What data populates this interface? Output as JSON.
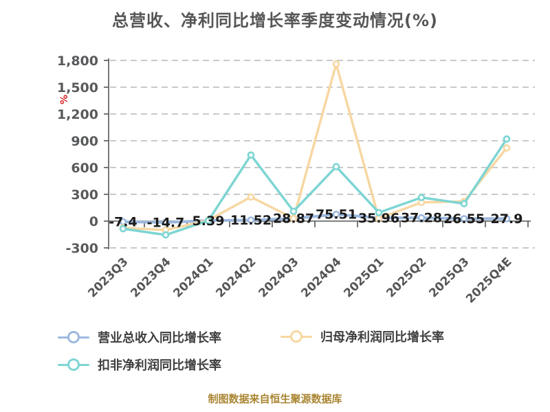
{
  "title": "总营收、净利同比增长率季度变动情况(%)",
  "y_axis": {
    "unit_label": "%",
    "unit_label_color": "#dd2222",
    "tick_labels": [
      "1,800",
      "1,500",
      "1,200",
      "900",
      "600",
      "300",
      "0",
      "-300"
    ],
    "tick_values": [
      1800,
      1500,
      1200,
      900,
      600,
      300,
      0,
      -300
    ]
  },
  "chart_data": {
    "type": "line",
    "title": "总营收、净利同比增长率季度变动情况(%)",
    "categories": [
      "2023Q3",
      "2023Q4",
      "2024Q1",
      "2024Q2",
      "2024Q3",
      "2024Q4",
      "2025Q1",
      "2025Q2",
      "2025Q3",
      "2025Q4E"
    ],
    "series": [
      {
        "name": "营业总收入同比增长率",
        "color": "#9cb8de",
        "values": [
          -7.4,
          -14.7,
          5.39,
          11.52,
          28.87,
          75.51,
          35.96,
          37.28,
          26.55,
          27.9
        ],
        "point_labels": [
          "-7.4",
          "-14.7",
          "5.39",
          "11.52",
          "28.87",
          "75.51",
          "35.96",
          "37.28",
          "26.55",
          "27.9"
        ]
      },
      {
        "name": "归母净利润同比增长率",
        "color": "#f7d7a2",
        "values": [
          -75,
          -100,
          10,
          270,
          30,
          1760,
          30,
          210,
          220,
          820
        ],
        "point_labels": []
      },
      {
        "name": "扣非净利润同比增长率",
        "color": "#7dd5d3",
        "values": [
          -85,
          -155,
          5,
          740,
          110,
          610,
          95,
          265,
          195,
          920
        ],
        "point_labels": []
      }
    ],
    "ylim": [
      -300,
      1800
    ],
    "xlabel": "",
    "ylabel": "%",
    "grid": "horizontal dashed",
    "legend_position": "bottom"
  },
  "legend": {
    "items": [
      {
        "label": "营业总收入同比增长率",
        "color": "#9cb8de"
      },
      {
        "label": "归母净利润同比增长率",
        "color": "#f7d7a2"
      },
      {
        "label": "扣非净利润同比增长率",
        "color": "#7dd5d3"
      }
    ]
  },
  "footer": {
    "text": "制图数据来自恒生聚源数据库",
    "color": "#aa8633"
  },
  "style_colors": {
    "title": "#565656",
    "axis": "#555555",
    "grid": "#c9c9c9",
    "tick_label": "#58595b",
    "data_label": "#1b1b1b"
  }
}
